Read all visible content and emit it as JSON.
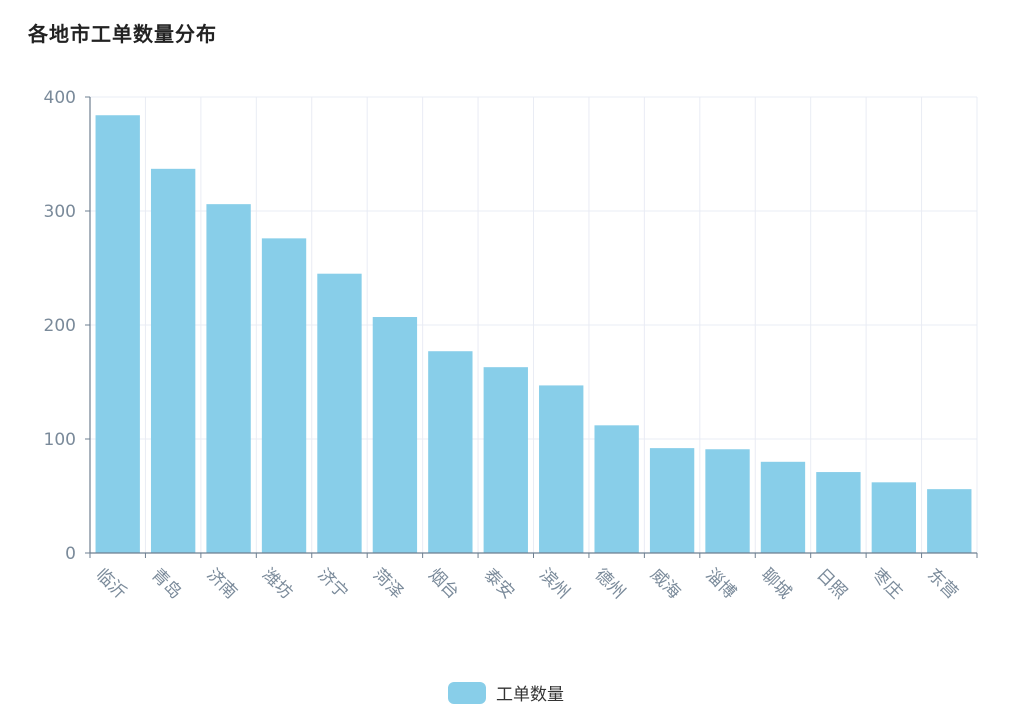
{
  "chart_data": {
    "type": "bar",
    "title": "各地市工单数量分布",
    "categories": [
      "临沂",
      "青岛",
      "济南",
      "潍坊",
      "济宁",
      "菏泽",
      "烟台",
      "泰安",
      "滨州",
      "德州",
      "威海",
      "淄博",
      "聊城",
      "日照",
      "枣庄",
      "东营"
    ],
    "series": [
      {
        "name": "工单数量",
        "values": [
          384,
          337,
          306,
          276,
          245,
          207,
          177,
          163,
          147,
          112,
          92,
          91,
          80,
          71,
          62,
          56
        ]
      }
    ],
    "xlabel": "",
    "ylabel": "",
    "ylim": [
      0,
      400
    ],
    "yticks": [
      0,
      100,
      200,
      300,
      400
    ],
    "grid": true,
    "legend_position": "bottom-center"
  },
  "colors": {
    "bar": "#88cee9",
    "axis": "#6e7f90",
    "grid": "#e9ecf4",
    "tick_text": "#7a8a9a"
  }
}
